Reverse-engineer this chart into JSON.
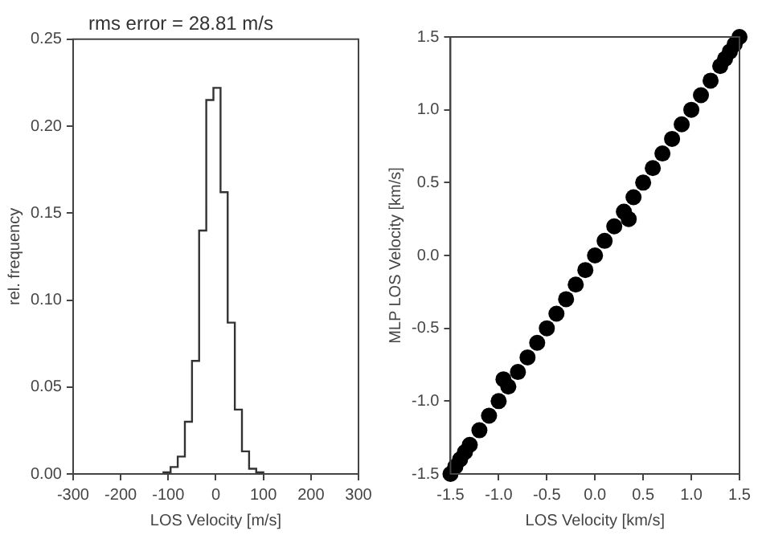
{
  "chart_data": [
    {
      "type": "histogram",
      "title": "rms error = 28.81 m/s",
      "xlabel": "LOS Velocity [m/s]",
      "ylabel": "rel. frequency",
      "bins": [
        -110,
        -95,
        -80,
        -65,
        -50,
        -35,
        -20,
        -5,
        10,
        25,
        40,
        55,
        70,
        85,
        100
      ],
      "values": [
        0.001,
        0.004,
        0.01,
        0.03,
        0.065,
        0.14,
        0.215,
        0.222,
        0.162,
        0.087,
        0.037,
        0.013,
        0.003,
        0.001
      ],
      "color": "#333333",
      "xlim": [
        -300,
        300
      ],
      "xticks": [
        -300,
        -200,
        -100,
        0,
        100,
        200,
        300
      ],
      "ylim": [
        0,
        0.25
      ],
      "yticks": [
        {
          "value": 0,
          "label": "0.00"
        },
        {
          "value": 0.05,
          "label": "0.05"
        },
        {
          "value": 0.1,
          "label": "0.10"
        },
        {
          "value": 0.15,
          "label": "0.15"
        },
        {
          "value": 0.2,
          "label": "0.20"
        },
        {
          "value": 0.25,
          "label": "0.25"
        }
      ],
      "grid": false,
      "legend": false
    },
    {
      "type": "scatter",
      "xlabel": "LOS Velocity [km/s]",
      "ylabel": "MLP LOS Velocity [km/s]",
      "marker": "circle",
      "x": [
        -1.5,
        -1.45,
        -1.4,
        -1.35,
        -1.3,
        -1.2,
        -1.1,
        -1.0,
        -0.9,
        -0.8,
        -0.7,
        -0.6,
        -0.5,
        -0.4,
        -0.3,
        -0.2,
        -0.1,
        0.0,
        0.1,
        0.2,
        0.3,
        0.4,
        0.5,
        0.6,
        0.7,
        0.8,
        0.9,
        1.0,
        1.1,
        1.2,
        1.3,
        1.35,
        1.4,
        1.45,
        1.5,
        -0.95,
        0.35
      ],
      "values": [
        -1.5,
        -1.45,
        -1.4,
        -1.35,
        -1.3,
        -1.2,
        -1.1,
        -1.0,
        -0.9,
        -0.8,
        -0.7,
        -0.6,
        -0.5,
        -0.4,
        -0.3,
        -0.2,
        -0.1,
        0.0,
        0.1,
        0.2,
        0.3,
        0.4,
        0.5,
        0.6,
        0.7,
        0.8,
        0.9,
        1.0,
        1.1,
        1.2,
        1.3,
        1.35,
        1.4,
        1.45,
        1.5,
        -0.85,
        0.25
      ],
      "color": "#000000",
      "xlim": [
        -1.5,
        1.5
      ],
      "xticks": [
        {
          "value": -1.5,
          "label": "-1.5"
        },
        {
          "value": -1,
          "label": "-1.0"
        },
        {
          "value": -0.5,
          "label": "-0.5"
        },
        {
          "value": 0,
          "label": "0.0"
        },
        {
          "value": 0.5,
          "label": "0.5"
        },
        {
          "value": 1,
          "label": "1.0"
        },
        {
          "value": 1.5,
          "label": "1.5"
        }
      ],
      "ylim": [
        -1.5,
        1.5
      ],
      "yticks": [
        {
          "value": -1.5,
          "label": "-1.5"
        },
        {
          "value": -1,
          "label": "-1.0"
        },
        {
          "value": -0.5,
          "label": "-0.5"
        },
        {
          "value": 0,
          "label": "0.0"
        },
        {
          "value": 0.5,
          "label": "0.5"
        },
        {
          "value": 1,
          "label": "1.0"
        },
        {
          "value": 1.5,
          "label": "1.5"
        }
      ],
      "grid": false,
      "legend": false
    }
  ]
}
